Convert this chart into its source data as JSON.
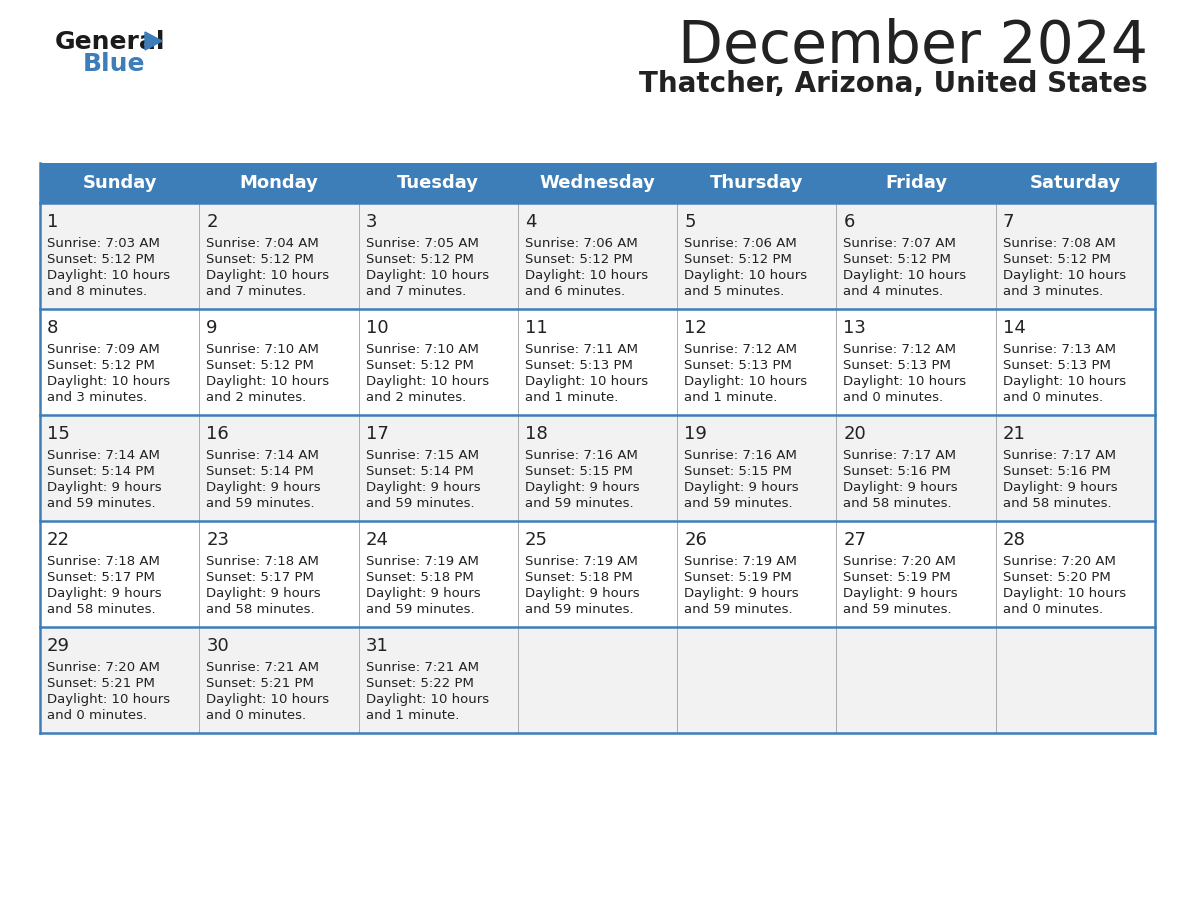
{
  "title": "December 2024",
  "subtitle": "Thatcher, Arizona, United States",
  "header_color": "#3d7db8",
  "header_text_color": "#ffffff",
  "days_of_week": [
    "Sunday",
    "Monday",
    "Tuesday",
    "Wednesday",
    "Thursday",
    "Friday",
    "Saturday"
  ],
  "row_bg_even": "#f2f2f2",
  "row_bg_odd": "#ffffff",
  "border_color": "#3d7db8",
  "divider_color": "#aaaaaa",
  "text_color": "#222222",
  "calendar_data": [
    [
      {
        "day": 1,
        "sunrise": "7:03 AM",
        "sunset": "5:12 PM",
        "daylight": "10 hours and 8 minutes."
      },
      {
        "day": 2,
        "sunrise": "7:04 AM",
        "sunset": "5:12 PM",
        "daylight": "10 hours and 7 minutes."
      },
      {
        "day": 3,
        "sunrise": "7:05 AM",
        "sunset": "5:12 PM",
        "daylight": "10 hours and 7 minutes."
      },
      {
        "day": 4,
        "sunrise": "7:06 AM",
        "sunset": "5:12 PM",
        "daylight": "10 hours and 6 minutes."
      },
      {
        "day": 5,
        "sunrise": "7:06 AM",
        "sunset": "5:12 PM",
        "daylight": "10 hours and 5 minutes."
      },
      {
        "day": 6,
        "sunrise": "7:07 AM",
        "sunset": "5:12 PM",
        "daylight": "10 hours and 4 minutes."
      },
      {
        "day": 7,
        "sunrise": "7:08 AM",
        "sunset": "5:12 PM",
        "daylight": "10 hours and 3 minutes."
      }
    ],
    [
      {
        "day": 8,
        "sunrise": "7:09 AM",
        "sunset": "5:12 PM",
        "daylight": "10 hours and 3 minutes."
      },
      {
        "day": 9,
        "sunrise": "7:10 AM",
        "sunset": "5:12 PM",
        "daylight": "10 hours and 2 minutes."
      },
      {
        "day": 10,
        "sunrise": "7:10 AM",
        "sunset": "5:12 PM",
        "daylight": "10 hours and 2 minutes."
      },
      {
        "day": 11,
        "sunrise": "7:11 AM",
        "sunset": "5:13 PM",
        "daylight": "10 hours and 1 minute."
      },
      {
        "day": 12,
        "sunrise": "7:12 AM",
        "sunset": "5:13 PM",
        "daylight": "10 hours and 1 minute."
      },
      {
        "day": 13,
        "sunrise": "7:12 AM",
        "sunset": "5:13 PM",
        "daylight": "10 hours and 0 minutes."
      },
      {
        "day": 14,
        "sunrise": "7:13 AM",
        "sunset": "5:13 PM",
        "daylight": "10 hours and 0 minutes."
      }
    ],
    [
      {
        "day": 15,
        "sunrise": "7:14 AM",
        "sunset": "5:14 PM",
        "daylight": "9 hours and 59 minutes."
      },
      {
        "day": 16,
        "sunrise": "7:14 AM",
        "sunset": "5:14 PM",
        "daylight": "9 hours and 59 minutes."
      },
      {
        "day": 17,
        "sunrise": "7:15 AM",
        "sunset": "5:14 PM",
        "daylight": "9 hours and 59 minutes."
      },
      {
        "day": 18,
        "sunrise": "7:16 AM",
        "sunset": "5:15 PM",
        "daylight": "9 hours and 59 minutes."
      },
      {
        "day": 19,
        "sunrise": "7:16 AM",
        "sunset": "5:15 PM",
        "daylight": "9 hours and 59 minutes."
      },
      {
        "day": 20,
        "sunrise": "7:17 AM",
        "sunset": "5:16 PM",
        "daylight": "9 hours and 58 minutes."
      },
      {
        "day": 21,
        "sunrise": "7:17 AM",
        "sunset": "5:16 PM",
        "daylight": "9 hours and 58 minutes."
      }
    ],
    [
      {
        "day": 22,
        "sunrise": "7:18 AM",
        "sunset": "5:17 PM",
        "daylight": "9 hours and 58 minutes."
      },
      {
        "day": 23,
        "sunrise": "7:18 AM",
        "sunset": "5:17 PM",
        "daylight": "9 hours and 58 minutes."
      },
      {
        "day": 24,
        "sunrise": "7:19 AM",
        "sunset": "5:18 PM",
        "daylight": "9 hours and 59 minutes."
      },
      {
        "day": 25,
        "sunrise": "7:19 AM",
        "sunset": "5:18 PM",
        "daylight": "9 hours and 59 minutes."
      },
      {
        "day": 26,
        "sunrise": "7:19 AM",
        "sunset": "5:19 PM",
        "daylight": "9 hours and 59 minutes."
      },
      {
        "day": 27,
        "sunrise": "7:20 AM",
        "sunset": "5:19 PM",
        "daylight": "9 hours and 59 minutes."
      },
      {
        "day": 28,
        "sunrise": "7:20 AM",
        "sunset": "5:20 PM",
        "daylight": "10 hours and 0 minutes."
      }
    ],
    [
      {
        "day": 29,
        "sunrise": "7:20 AM",
        "sunset": "5:21 PM",
        "daylight": "10 hours and 0 minutes."
      },
      {
        "day": 30,
        "sunrise": "7:21 AM",
        "sunset": "5:21 PM",
        "daylight": "10 hours and 0 minutes."
      },
      {
        "day": 31,
        "sunrise": "7:21 AM",
        "sunset": "5:22 PM",
        "daylight": "10 hours and 1 minute."
      },
      null,
      null,
      null,
      null
    ]
  ],
  "logo_color_general": "#1a1a1a",
  "logo_color_blue": "#3d7db8",
  "logo_triangle_color": "#3d7db8",
  "title_fontsize": 42,
  "subtitle_fontsize": 20,
  "header_fontsize": 13,
  "day_num_fontsize": 13,
  "cell_text_fontsize": 9.5
}
